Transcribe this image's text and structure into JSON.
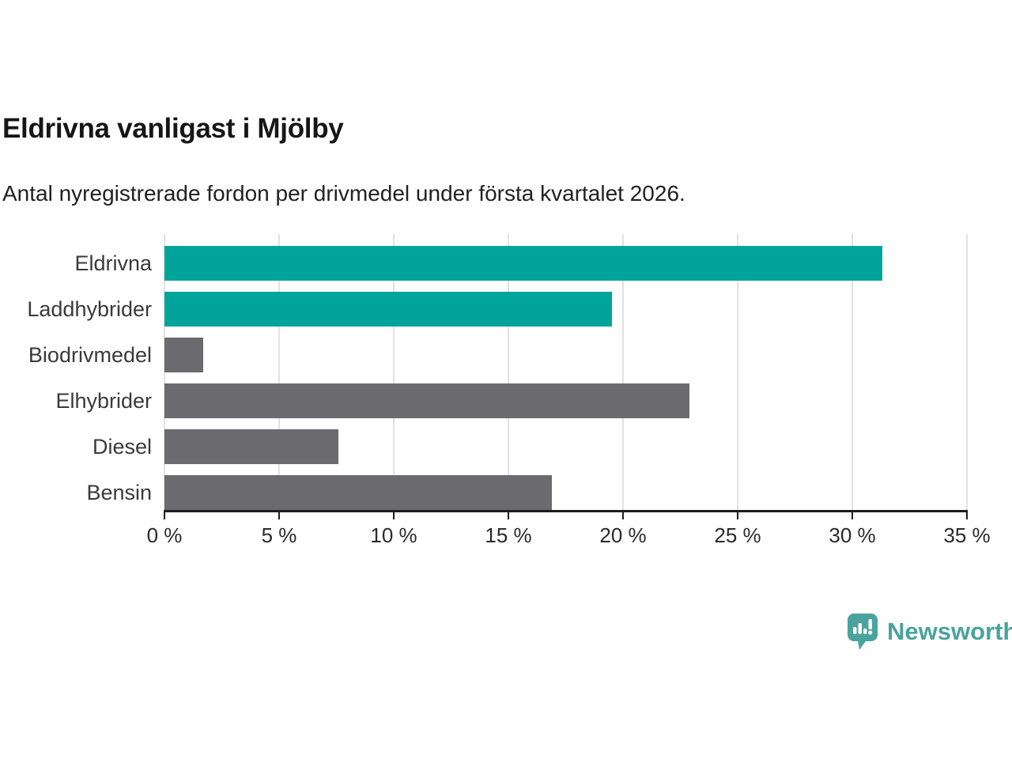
{
  "header": {
    "title": "Eldrivna vanligast i Mjölby",
    "subtitle": "Antal nyregistrerade fordon per drivmedel under första kvartalet 2026."
  },
  "chart_data": {
    "type": "bar",
    "orientation": "horizontal",
    "title": "Eldrivna vanligast i Mjölby",
    "subtitle": "Antal nyregistrerade fordon per drivmedel under första kvartalet 2026.",
    "categories": [
      "Eldrivna",
      "Laddhybrider",
      "Biodrivmedel",
      "Elhybrider",
      "Diesel",
      "Bensin"
    ],
    "values": [
      31.3,
      19.5,
      1.7,
      22.9,
      7.6,
      16.9
    ],
    "unit": "%",
    "bar_colors": [
      "#00a49b",
      "#00a49b",
      "#6a6a6f",
      "#6a6a6f",
      "#6a6a6f",
      "#6a6a6f"
    ],
    "highlight_color": "#00a49b",
    "default_color": "#6a6a6f",
    "xlabel": "",
    "ylabel": "",
    "xlim": [
      0,
      35
    ],
    "x_tick_values": [
      0,
      5,
      10,
      15,
      20,
      25,
      30,
      35
    ],
    "x_tick_labels": [
      "0 %",
      "5 %",
      "10 %",
      "15 %",
      "20 %",
      "25 %",
      "30 %",
      "35 %"
    ],
    "grid": true,
    "legend": "none"
  },
  "branding": {
    "logo_text": "Newsworthy",
    "logo_color": "#4ba39d",
    "logo_icon": "bar-chart-speech-bubble-icon",
    "icon_fill": "#4ba39d"
  }
}
